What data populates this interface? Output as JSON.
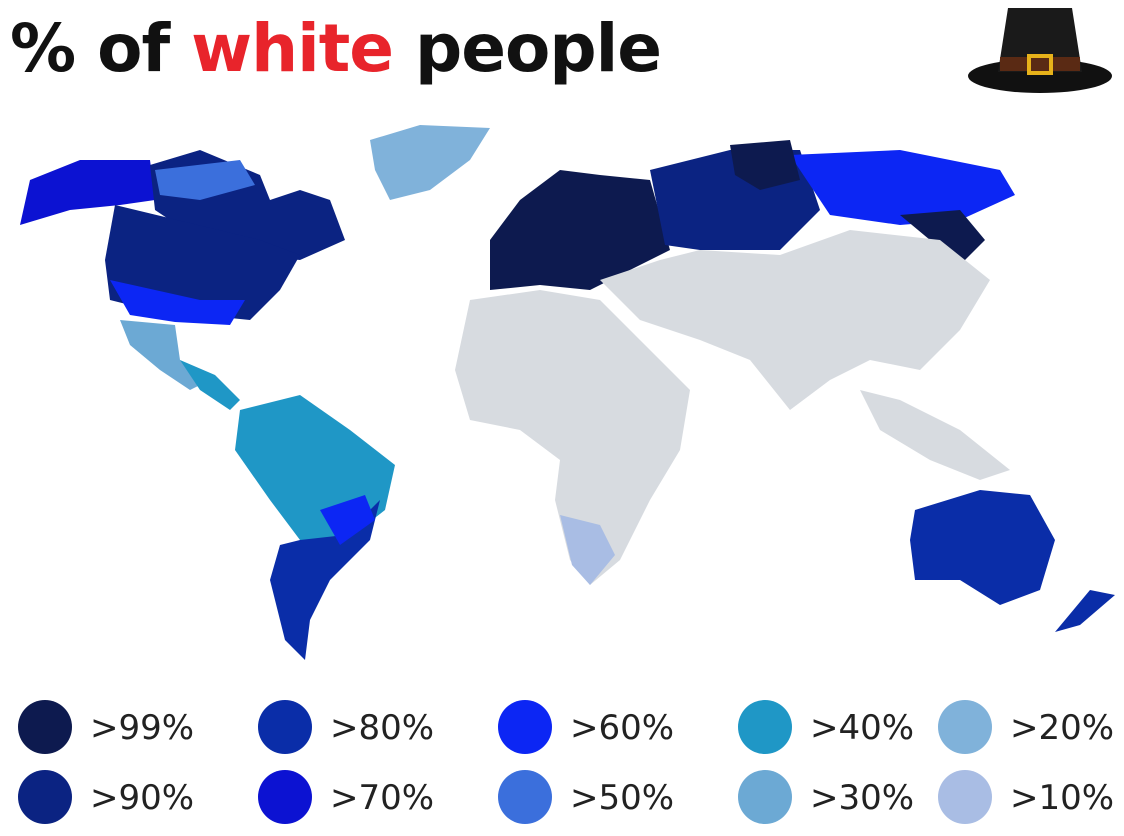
{
  "title_parts": [
    "% of",
    "white",
    "people"
  ],
  "legend": [
    {
      "label": ">99%",
      "color": "#0d1a4f"
    },
    {
      "label": ">90%",
      "color": "#0b2382"
    },
    {
      "label": ">80%",
      "color": "#0a2da8"
    },
    {
      "label": ">70%",
      "color": "#0c12d2"
    },
    {
      "label": ">60%",
      "color": "#0c26f4"
    },
    {
      "label": ">50%",
      "color": "#3b6fdc"
    },
    {
      "label": ">40%",
      "color": "#1f97c6"
    },
    {
      "label": ">30%",
      "color": "#6ca9d4"
    },
    {
      "label": ">20%",
      "color": "#80b2da"
    },
    {
      "label": ">10%",
      "color": "#a9bde4"
    }
  ]
}
